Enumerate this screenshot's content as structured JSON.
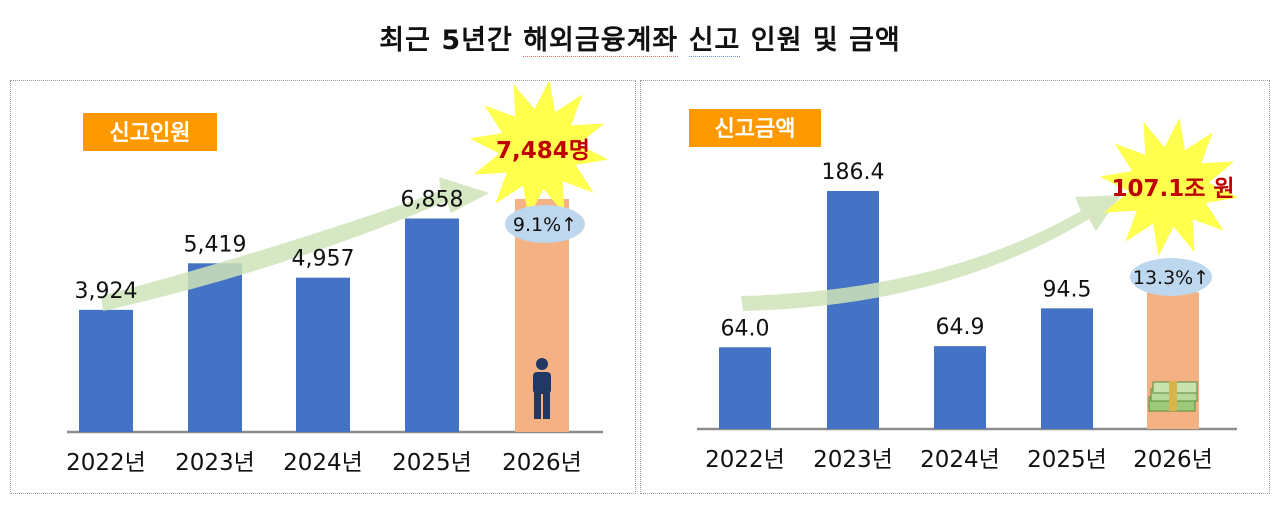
{
  "title_parts": [
    "최근 5년간 ",
    "해외금융계좌",
    " ",
    "신고",
    " 인원 및 금액"
  ],
  "colors": {
    "bar": "#4472c4",
    "highlight_bar": "#f4b183",
    "badge": "#ff9900",
    "arrow": "#cfe3b8",
    "burst": "#ffff4d",
    "callout": "#c00000",
    "pill": "#bdd7ee"
  },
  "icons": {
    "left": "person-icon",
    "right": "money-stack-icon"
  },
  "chart_data": [
    {
      "type": "bar",
      "badge": "신고인원",
      "categories": [
        "2022년",
        "2023년",
        "2024년",
        "2025년",
        "2026년"
      ],
      "values": [
        3924,
        5419,
        4957,
        6858,
        7484
      ],
      "labels": [
        "3,924",
        "5,419",
        "4,957",
        "6,858",
        ""
      ],
      "highlight_index": 4,
      "callout": "7,484명",
      "growth": "9.1%↑",
      "ylim": [
        0,
        7484
      ]
    },
    {
      "type": "bar",
      "badge": "신고금액",
      "categories": [
        "2022년",
        "2023년",
        "2024년",
        "2025년",
        "2026년"
      ],
      "values": [
        64.0,
        186.4,
        64.9,
        94.5,
        107.1
      ],
      "labels": [
        "64.0",
        "186.4",
        "64.9",
        "94.5",
        ""
      ],
      "highlight_index": 4,
      "callout": "107.1조 원",
      "growth": "13.3%↑",
      "ylim": [
        0,
        186.4
      ]
    }
  ]
}
